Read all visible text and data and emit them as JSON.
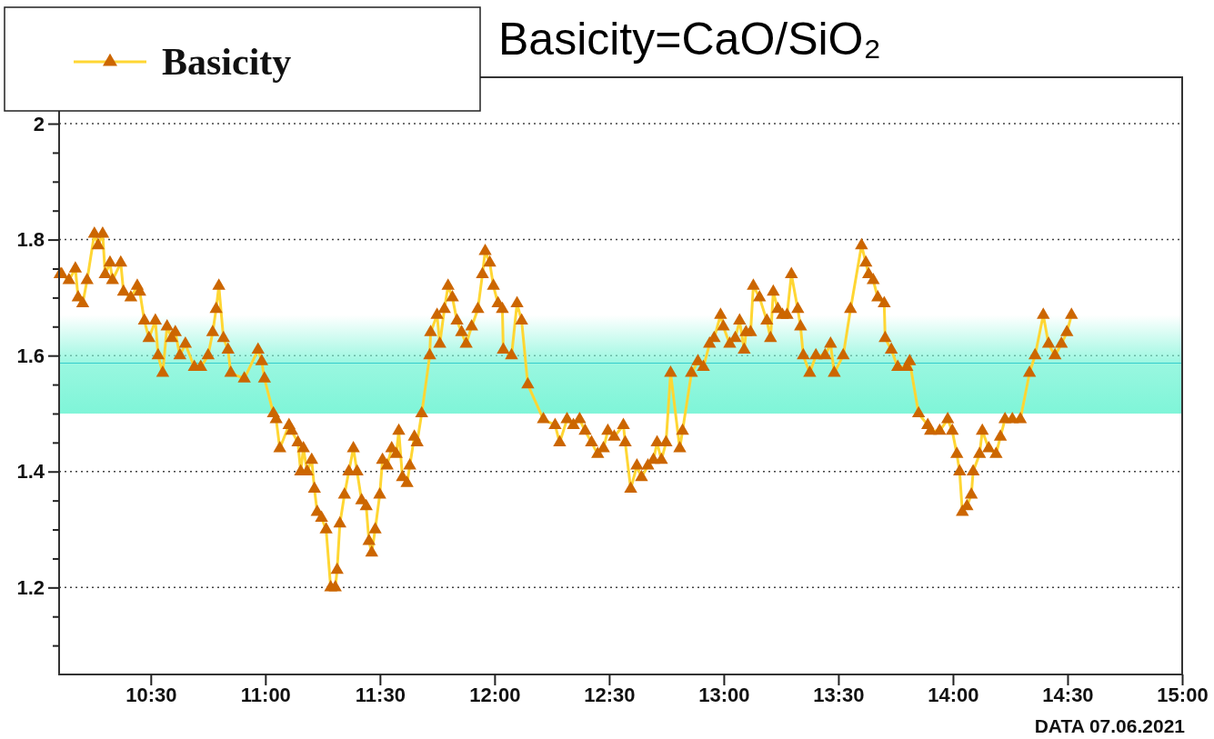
{
  "chart_data": {
    "type": "line",
    "title": "Basicity=CaO/SiO₂",
    "annotations": [
      "DATA 07.06.2021"
    ],
    "legend": "top left",
    "grid": "y",
    "marker": "triangle",
    "line_style": "solid",
    "xlim": [
      10.1,
      15.0
    ],
    "xticks": [
      {
        "value": 10.5,
        "label": "10:30"
      },
      {
        "value": 11,
        "label": "11:00"
      },
      {
        "value": 11.5,
        "label": "11:30"
      },
      {
        "value": 12,
        "label": "12:00"
      },
      {
        "value": 12.5,
        "label": "12:30"
      },
      {
        "value": 13,
        "label": "13:00"
      },
      {
        "value": 13.5,
        "label": "13:30"
      },
      {
        "value": 14,
        "label": "14:00"
      },
      {
        "value": 14.5,
        "label": "14:30"
      },
      {
        "value": 15,
        "label": "15:00"
      }
    ],
    "ylim": [
      1.05,
      2.08
    ],
    "yticks": [
      {
        "value": 1.1,
        "label": null
      },
      {
        "value": 1.15,
        "label": null
      },
      {
        "value": 1.2,
        "label": "1.2"
      },
      {
        "value": 1.25,
        "label": null
      },
      {
        "value": 1.3,
        "label": null
      },
      {
        "value": 1.35,
        "label": null
      },
      {
        "value": 1.4,
        "label": "1.4"
      },
      {
        "value": 1.45,
        "label": null
      },
      {
        "value": 1.5,
        "label": null
      },
      {
        "value": 1.55,
        "label": null
      },
      {
        "value": 1.6,
        "label": "1.6"
      },
      {
        "value": 1.65,
        "label": null
      },
      {
        "value": 1.7,
        "label": null
      },
      {
        "value": 1.75,
        "label": null
      },
      {
        "value": 1.8,
        "label": "1.8"
      },
      {
        "value": 1.85,
        "label": null
      },
      {
        "value": 1.9,
        "label": null
      },
      {
        "value": 1.95,
        "label": null
      },
      {
        "value": 2,
        "label": "2"
      },
      {
        "value": 2.05,
        "label": null
      }
    ],
    "bands": [
      {
        "axis": "y",
        "from": 1.5,
        "to": 1.67,
        "color": "#7ff5d8"
      }
    ],
    "ref_lines": [
      {
        "axis": "y",
        "value": 1.587,
        "color": "#33cccc"
      }
    ],
    "series": [
      {
        "name": "Basicity",
        "color": "#cc6600",
        "x": [
          10.104,
          10.111,
          10.143,
          10.171,
          10.183,
          10.203,
          10.222,
          10.254,
          10.27,
          10.29,
          10.301,
          10.322,
          10.333,
          10.369,
          10.381,
          10.413,
          10.441,
          10.452,
          10.472,
          10.492,
          10.52,
          10.532,
          10.552,
          10.571,
          10.591,
          10.607,
          10.627,
          10.651,
          10.69,
          10.718,
          10.75,
          10.77,
          10.785,
          10.797,
          10.817,
          10.837,
          10.849,
          10.908,
          10.968,
          10.984,
          10.996,
          11.035,
          11.047,
          11.063,
          11.103,
          11.115,
          11.142,
          11.154,
          11.166,
          11.182,
          11.202,
          11.214,
          11.226,
          11.245,
          11.265,
          11.285,
          11.305,
          11.313,
          11.325,
          11.345,
          11.364,
          11.384,
          11.4,
          11.42,
          11.44,
          11.452,
          11.464,
          11.479,
          11.499,
          11.511,
          11.531,
          11.551,
          11.571,
          11.582,
          11.598,
          11.618,
          11.63,
          11.65,
          11.662,
          11.682,
          11.717,
          11.721,
          11.749,
          11.761,
          11.781,
          11.797,
          11.816,
          11.836,
          11.856,
          11.876,
          11.9,
          11.927,
          11.947,
          11.959,
          11.979,
          11.995,
          12.015,
          12.034,
          12.038,
          12.074,
          12.098,
          12.118,
          12.145,
          12.213,
          12.264,
          12.284,
          12.316,
          12.344,
          12.371,
          12.395,
          12.423,
          12.45,
          12.475,
          12.494,
          12.522,
          12.562,
          12.57,
          12.594,
          12.621,
          12.641,
          12.669,
          12.693,
          12.709,
          12.728,
          12.748,
          12.768,
          12.808,
          12.82,
          12.859,
          12.887,
          12.911,
          12.938,
          12.958,
          12.986,
          12.998,
          13.026,
          13.05,
          13.069,
          13.089,
          13.097,
          13.117,
          13.129,
          13.156,
          13.188,
          13.204,
          13.216,
          13.236,
          13.256,
          13.276,
          13.295,
          13.323,
          13.335,
          13.347,
          13.375,
          13.402,
          13.442,
          13.466,
          13.482,
          13.521,
          13.553,
          13.601,
          13.62,
          13.632,
          13.652,
          13.672,
          13.7,
          13.704,
          13.731,
          13.759,
          13.799,
          13.811,
          13.85,
          13.89,
          13.902,
          13.942,
          13.977,
          13.997,
          14.017,
          14.029,
          14.041,
          14.061,
          14.08,
          14.088,
          14.116,
          14.128,
          14.156,
          14.188,
          14.207,
          14.227,
          14.259,
          14.294,
          14.334,
          14.358,
          14.394,
          14.417,
          14.445,
          14.473,
          14.497,
          14.517
        ],
        "values": [
          1.74,
          1.74,
          1.73,
          1.75,
          1.7,
          1.69,
          1.73,
          1.81,
          1.79,
          1.81,
          1.74,
          1.76,
          1.73,
          1.76,
          1.71,
          1.7,
          1.72,
          1.71,
          1.66,
          1.63,
          1.66,
          1.6,
          1.57,
          1.65,
          1.63,
          1.64,
          1.6,
          1.62,
          1.58,
          1.58,
          1.6,
          1.64,
          1.68,
          1.72,
          1.63,
          1.61,
          1.57,
          1.56,
          1.61,
          1.59,
          1.56,
          1.5,
          1.49,
          1.44,
          1.48,
          1.47,
          1.45,
          1.4,
          1.44,
          1.4,
          1.42,
          1.37,
          1.33,
          1.32,
          1.3,
          1.2,
          1.2,
          1.23,
          1.31,
          1.36,
          1.4,
          1.44,
          1.4,
          1.35,
          1.34,
          1.28,
          1.26,
          1.3,
          1.36,
          1.42,
          1.41,
          1.44,
          1.43,
          1.47,
          1.39,
          1.38,
          1.41,
          1.46,
          1.45,
          1.5,
          1.6,
          1.64,
          1.67,
          1.62,
          1.68,
          1.72,
          1.7,
          1.66,
          1.64,
          1.62,
          1.65,
          1.68,
          1.74,
          1.78,
          1.76,
          1.72,
          1.69,
          1.68,
          1.61,
          1.6,
          1.69,
          1.66,
          1.55,
          1.49,
          1.48,
          1.45,
          1.49,
          1.48,
          1.49,
          1.47,
          1.45,
          1.43,
          1.44,
          1.47,
          1.46,
          1.48,
          1.45,
          1.37,
          1.41,
          1.39,
          1.41,
          1.42,
          1.45,
          1.42,
          1.45,
          1.57,
          1.44,
          1.47,
          1.57,
          1.59,
          1.58,
          1.62,
          1.63,
          1.67,
          1.65,
          1.62,
          1.63,
          1.66,
          1.61,
          1.64,
          1.64,
          1.72,
          1.7,
          1.66,
          1.63,
          1.71,
          1.68,
          1.67,
          1.67,
          1.74,
          1.68,
          1.65,
          1.6,
          1.57,
          1.6,
          1.6,
          1.62,
          1.57,
          1.6,
          1.68,
          1.79,
          1.76,
          1.74,
          1.73,
          1.7,
          1.69,
          1.63,
          1.61,
          1.58,
          1.58,
          1.59,
          1.5,
          1.48,
          1.47,
          1.47,
          1.49,
          1.47,
          1.43,
          1.4,
          1.33,
          1.34,
          1.36,
          1.4,
          1.43,
          1.47,
          1.44,
          1.43,
          1.46,
          1.49,
          1.49,
          1.49,
          1.57,
          1.6,
          1.67,
          1.62,
          1.6,
          1.62,
          1.64,
          1.67
        ]
      }
    ]
  }
}
